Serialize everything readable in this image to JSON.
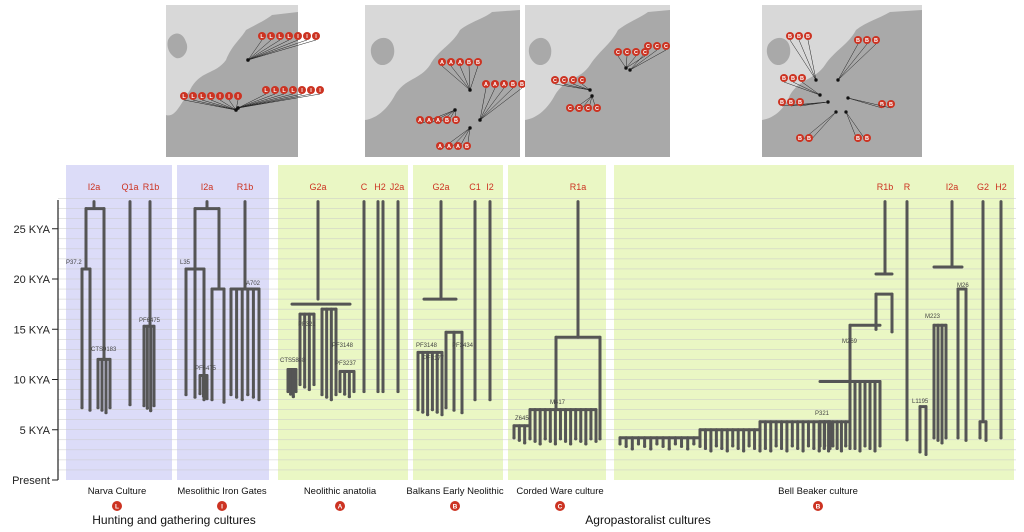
{
  "y_axis": {
    "ticks": [
      {
        "label": "Present",
        "kya": 0
      },
      {
        "label": "5 KYA",
        "kya": 5
      },
      {
        "label": "10 KYA",
        "kya": 10
      },
      {
        "label": "15 KYA",
        "kya": 15
      },
      {
        "label": "20 KYA",
        "kya": 20
      },
      {
        "label": "25 KYA",
        "kya": 25
      }
    ],
    "range_kya": [
      0,
      28
    ]
  },
  "groups": [
    {
      "label": "Hunting and gathering cultures"
    },
    {
      "label": "Agropastoralist cultures"
    }
  ],
  "colors": {
    "hunter_gatherer_panel": "#dcdcf8",
    "agropastoralist_panel": "#eaf7c4",
    "haplogroup_label": "#cc3322",
    "tree": "#555555"
  },
  "cultures": [
    {
      "name": "Narva Culture",
      "code": "L",
      "group": 0,
      "haplogroups": [
        "I2a",
        "Q1a",
        "R1b"
      ],
      "snp_labels": [
        "P37.2",
        "CTS9183",
        "PF6475"
      ],
      "map_markers": [
        "L",
        "L",
        "L",
        "L",
        "L",
        "L",
        "L",
        "L",
        "L",
        "L",
        "L",
        "L"
      ]
    },
    {
      "name": "Mesolithic Iron Gates",
      "code": "I",
      "group": 0,
      "haplogroups": [
        "I2a",
        "R1b"
      ],
      "snp_labels": [
        "L35",
        "A702",
        "PF6475"
      ],
      "map_markers": [
        "I",
        "I",
        "I",
        "I",
        "I",
        "I",
        "I",
        "I",
        "I"
      ]
    },
    {
      "name": "Neolithic anatolia",
      "code": "A",
      "group": 1,
      "haplogroups": [
        "G2a",
        "C",
        "H2",
        "J2a"
      ],
      "snp_labels": [
        "PF321",
        "PF3148",
        "PF3237",
        "CTS5888"
      ],
      "map_markers": [
        "A",
        "A",
        "A",
        "A",
        "A",
        "A",
        "A",
        "A",
        "A",
        "A",
        "A",
        "A"
      ]
    },
    {
      "name": "Balkans Early Neolithic",
      "code": "B",
      "group": 1,
      "haplogroups": [
        "G2a",
        "C1",
        "I2"
      ],
      "snp_labels": [
        "PF3148",
        "PF3177",
        "PF3434"
      ],
      "map_markers": [
        "B",
        "B",
        "B",
        "B",
        "B",
        "B",
        "B"
      ]
    },
    {
      "name": "Corded Ware culture",
      "code": "C",
      "group": 1,
      "haplogroups": [
        "R1a"
      ],
      "snp_labels": [
        "Z645",
        "M417"
      ],
      "map_markers": [
        "C",
        "C",
        "C",
        "C",
        "C",
        "C",
        "C",
        "C",
        "C",
        "C",
        "C",
        "C",
        "C",
        "C",
        "C"
      ]
    },
    {
      "name": "Bell Beaker culture",
      "code": "B",
      "group": 1,
      "haplogroups": [
        "R1b",
        "R",
        "I2a",
        "G2",
        "H2"
      ],
      "snp_labels": [
        "M269",
        "P321",
        "L1195",
        "M223",
        "M26"
      ],
      "map_markers": [
        "B",
        "B",
        "B",
        "B",
        "B",
        "B",
        "B",
        "B",
        "B",
        "B",
        "B",
        "B",
        "B",
        "B",
        "B",
        "B",
        "B",
        "B"
      ]
    }
  ]
}
